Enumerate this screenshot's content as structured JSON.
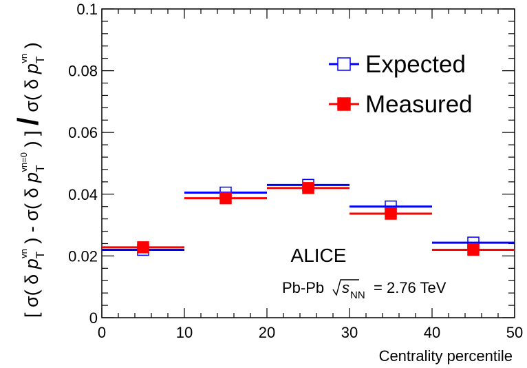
{
  "chart_data": {
    "type": "scatter",
    "title": "",
    "xlabel": "Centrality percentile",
    "ylabel": "[ σ( δ p_T^{v_n} ) - σ( δ p_T^{v_n=0} ) ] / σ( δ p_T^{v_n} )",
    "xlim": [
      0,
      50
    ],
    "ylim": [
      0,
      0.1
    ],
    "x_ticks": [
      "0",
      "10",
      "20",
      "30",
      "40",
      "50"
    ],
    "y_ticks": [
      "0",
      "0.02",
      "0.04",
      "0.06",
      "0.08",
      "0.1"
    ],
    "grid": false,
    "legend_position": "top-right",
    "series": [
      {
        "name": "Expected",
        "color": "#0000ff",
        "marker": "open-square",
        "bins": [
          [
            0,
            10
          ],
          [
            10,
            20
          ],
          [
            20,
            30
          ],
          [
            30,
            40
          ],
          [
            40,
            50
          ]
        ],
        "x": [
          5,
          15,
          25,
          35,
          45
        ],
        "values": [
          0.022,
          0.0405,
          0.043,
          0.036,
          0.0243
        ]
      },
      {
        "name": "Measured",
        "color": "#ff0000",
        "marker": "filled-square",
        "bins": [
          [
            0,
            10
          ],
          [
            10,
            20
          ],
          [
            20,
            30
          ],
          [
            30,
            40
          ],
          [
            40,
            50
          ]
        ],
        "x": [
          5,
          15,
          25,
          35,
          45
        ],
        "values": [
          0.0228,
          0.0387,
          0.042,
          0.0337,
          0.022
        ]
      }
    ],
    "annotations": {
      "experiment": "ALICE",
      "system": "Pb-Pb",
      "energy_sqrt": "s",
      "energy_sub": "NN",
      "energy_value": "= 2.76 TeV"
    }
  }
}
